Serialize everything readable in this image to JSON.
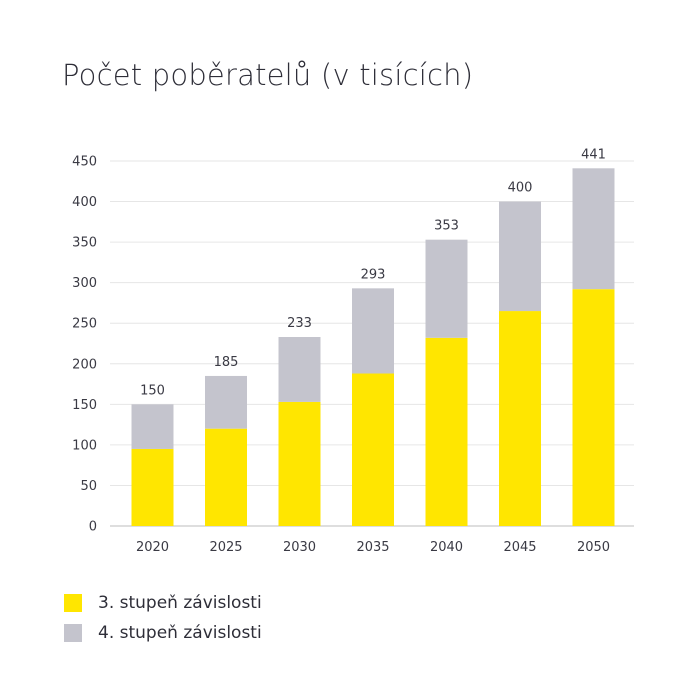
{
  "title": "Počet poběratelů (v tisících)",
  "colors": {
    "stage3": "#ffe600",
    "stage4": "#c4c4cd",
    "grid": "#e6e6e6",
    "axis": "#bdbdbd"
  },
  "legend": [
    {
      "label": "3. stupeň závislosti",
      "color": "#ffe600"
    },
    {
      "label": "4. stupeň závislosti",
      "color": "#c4c4cd"
    }
  ],
  "chart_data": {
    "type": "bar",
    "stacked": true,
    "title": "Počet poběratelů (v tisících)",
    "categories": [
      "2020",
      "2025",
      "2030",
      "2035",
      "2040",
      "2045",
      "2050"
    ],
    "series": [
      {
        "name": "3. stupeň závislosti",
        "values": [
          95,
          120,
          153,
          188,
          232,
          265,
          292
        ],
        "color": "#ffe600"
      },
      {
        "name": "4. stupeň závislosti",
        "values": [
          55,
          65,
          80,
          105,
          121,
          135,
          149
        ],
        "color": "#c4c4cd"
      }
    ],
    "totals": [
      150,
      185,
      233,
      293,
      353,
      400,
      441
    ],
    "yticks": [
      0,
      50,
      100,
      150,
      200,
      250,
      300,
      350,
      400,
      450
    ],
    "ylim": [
      0,
      450
    ],
    "grid": true,
    "legend_position": "bottom-left",
    "xlabel": "",
    "ylabel": ""
  }
}
